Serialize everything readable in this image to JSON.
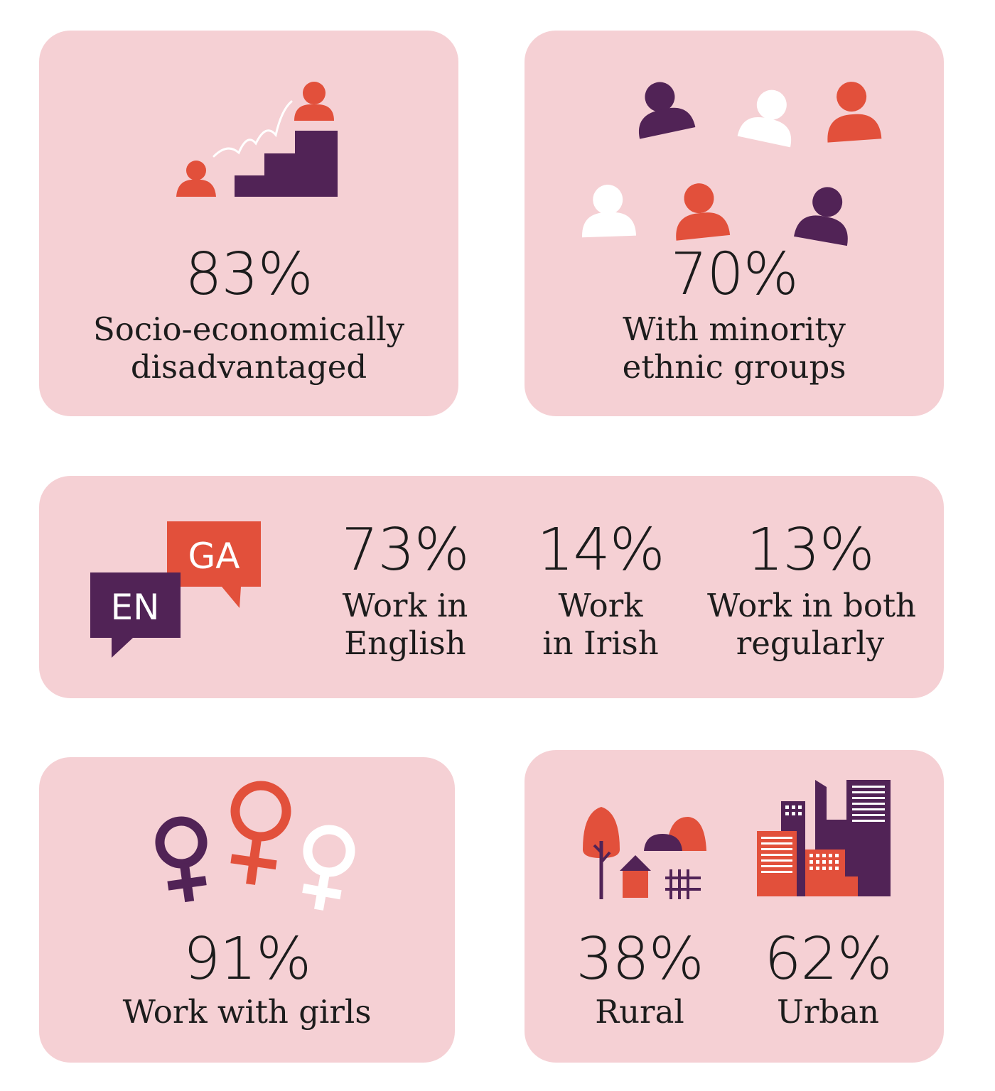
{
  "palette": {
    "card": "#f5d0d4",
    "purple": "#512356",
    "orange": "#e2503b",
    "white": "#ffffff",
    "text": "#1c1c1c"
  },
  "stats": {
    "socio": {
      "icon": "staircase-people-icon",
      "value": "83%",
      "label_1": "Socio-economically",
      "label_2": "disadvantaged"
    },
    "ethnic": {
      "icon": "people-group-icon",
      "value": "70%",
      "label_1": "With minority",
      "label_2": "ethnic groups"
    },
    "language": {
      "icon": "speech-bubbles-icon",
      "bubble_en": "EN",
      "bubble_ga": "GA",
      "items": [
        {
          "value": "73%",
          "label_1": "Work in",
          "label_2": "English"
        },
        {
          "value": "14%",
          "label_1": "Work",
          "label_2": "in Irish"
        },
        {
          "value": "13%",
          "label_1": "Work in both",
          "label_2": "regularly"
        }
      ]
    },
    "girls": {
      "icon": "female-symbols-icon",
      "value": "91%",
      "label": "Work with girls"
    },
    "location": {
      "rural": {
        "icon": "rural-scene-icon",
        "value": "38%",
        "label": "Rural"
      },
      "urban": {
        "icon": "city-skyline-icon",
        "value": "62%",
        "label": "Urban"
      }
    }
  }
}
